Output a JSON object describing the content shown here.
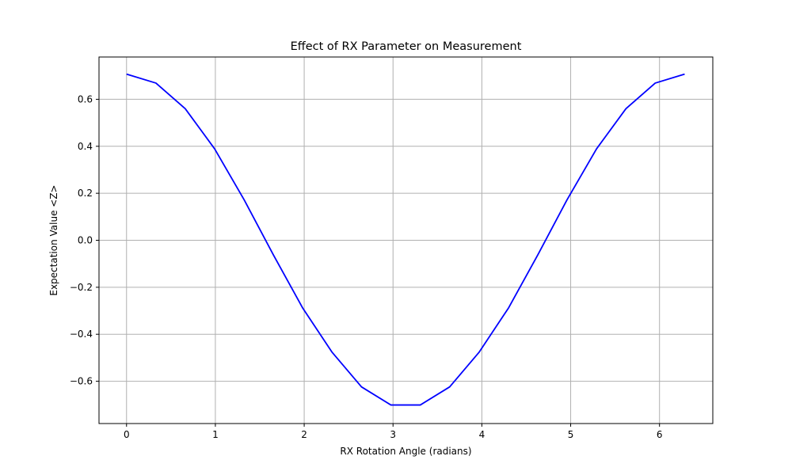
{
  "chart_data": {
    "type": "line",
    "title": "Effect of RX Parameter on Measurement",
    "xlabel": "RX Rotation Angle (radians)",
    "ylabel": "Expectation Value <Z>",
    "xlim": [
      -0.31,
      6.6
    ],
    "ylim": [
      -0.78,
      0.78
    ],
    "xticks": [
      0,
      1,
      2,
      3,
      4,
      5,
      6
    ],
    "xtick_labels": [
      "0",
      "1",
      "2",
      "3",
      "4",
      "5",
      "6"
    ],
    "yticks": [
      -0.6,
      -0.4,
      -0.2,
      0.0,
      0.2,
      0.4,
      0.6
    ],
    "ytick_labels": [
      "−0.6",
      "−0.4",
      "−0.2",
      "0.0",
      "0.2",
      "0.4",
      "0.6"
    ],
    "grid": true,
    "series": [
      {
        "color": "#0000ff",
        "x": [
          0.0,
          0.331,
          0.661,
          0.992,
          1.323,
          1.653,
          1.984,
          2.315,
          2.645,
          2.976,
          3.307,
          3.638,
          3.968,
          4.299,
          4.63,
          4.96,
          5.291,
          5.622,
          5.952,
          6.283
        ],
        "y": [
          0.707,
          0.669,
          0.56,
          0.389,
          0.173,
          -0.062,
          -0.289,
          -0.477,
          -0.624,
          -0.701,
          -0.701,
          -0.624,
          -0.477,
          -0.289,
          -0.062,
          0.173,
          0.389,
          0.56,
          0.669,
          0.707
        ]
      }
    ]
  }
}
